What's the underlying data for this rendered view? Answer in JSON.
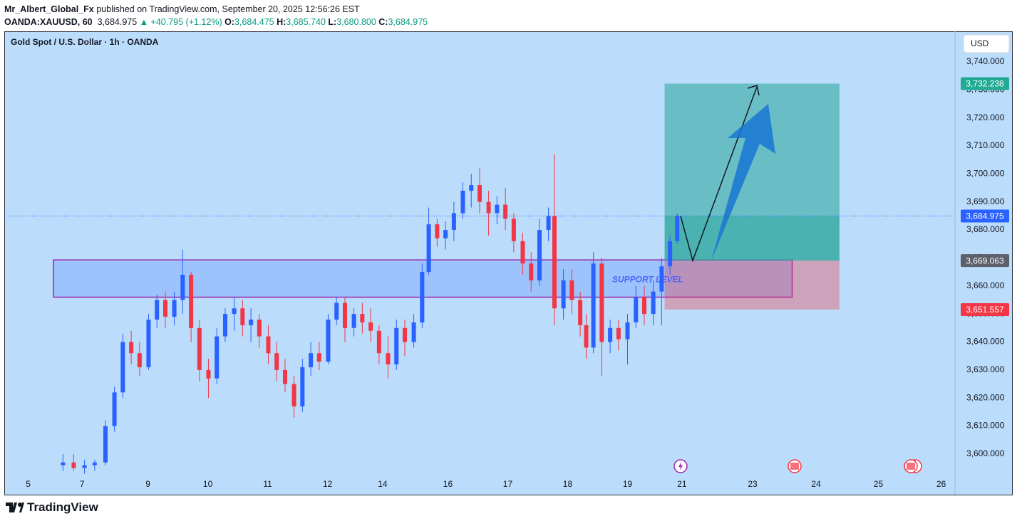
{
  "header": {
    "author": "Mr_Albert_Global_Fx",
    "published": "published on TradingView.com, September 20, 2025 12:56:26 EST",
    "symbol": "OANDA:XAUUSD, 60",
    "last": "3,684.975",
    "change": "▲ +40.795 (+1.12%)",
    "open_label": "O:",
    "open": "3,684.475",
    "high_label": "H:",
    "high": "3,685.740",
    "low_label": "L:",
    "low": "3,680.800",
    "close_label": "C:",
    "close": "3,684.975"
  },
  "currency": "USD",
  "footer": {
    "brand": "TradingView"
  },
  "chart_data": {
    "type": "candlestick",
    "title": "Gold Spot / U.S. Dollar · 1h · OANDA",
    "up_color": "#2962ff",
    "down_color": "#f23645",
    "x": [
      -0.32,
      -0.14,
      0.04,
      0.21,
      0.39,
      0.54,
      0.68,
      0.82,
      0.96,
      1.11,
      1.25,
      1.39,
      1.54,
      1.68,
      1.82,
      1.96,
      2.11,
      2.25,
      2.39,
      2.54,
      2.68,
      2.82,
      2.96,
      3.11,
      3.25,
      3.39,
      3.54,
      3.68,
      3.82,
      3.96,
      4.11,
      4.25,
      4.39,
      4.54,
      4.68,
      4.82,
      4.96,
      5.11,
      5.25,
      5.39,
      5.54,
      5.68,
      5.79,
      5.93,
      6.07,
      6.21,
      6.36,
      6.5,
      6.64,
      6.79,
      6.93,
      7.07,
      7.21,
      7.36,
      7.5,
      7.64,
      7.79,
      7.89,
      8.04,
      8.18,
      8.32,
      8.42,
      8.54,
      8.68,
      8.82,
      8.96,
      9.11,
      9.25,
      9.39,
      9.54,
      9.68,
      9.82,
      9.94
    ],
    "open": [
      3596,
      3597,
      3595,
      3596,
      3597,
      3610,
      3622,
      3640,
      3636,
      3631,
      3648,
      3655,
      3649,
      3655,
      3664,
      3645,
      3630,
      3627,
      3642,
      3650,
      3652,
      3646,
      3648,
      3642,
      3636,
      3630,
      3625,
      3617,
      3631,
      3636,
      3633,
      3648,
      3654,
      3645,
      3650,
      3647,
      3644,
      3636,
      3632,
      3645,
      3640,
      3647,
      3665,
      3682,
      3677,
      3680,
      3686,
      3694,
      3696,
      3690,
      3686,
      3689,
      3684,
      3676,
      3668,
      3662,
      3680,
      3685,
      3652,
      3662,
      3655,
      3646,
      3638,
      3668,
      3640,
      3645,
      3641,
      3647,
      3656,
      3650,
      3658,
      3667,
      3676
    ],
    "high": [
      3600,
      3600,
      3598,
      3598,
      3612,
      3624,
      3643,
      3644,
      3640,
      3650,
      3657,
      3658,
      3658,
      3673,
      3665,
      3648,
      3634,
      3645,
      3652,
      3656,
      3655,
      3652,
      3650,
      3646,
      3640,
      3634,
      3628,
      3634,
      3640,
      3640,
      3650,
      3656,
      3656,
      3652,
      3654,
      3652,
      3646,
      3642,
      3648,
      3648,
      3650,
      3668,
      3688,
      3684,
      3683,
      3690,
      3697,
      3700,
      3702,
      3694,
      3692,
      3695,
      3686,
      3679,
      3672,
      3684,
      3688,
      3707,
      3666,
      3666,
      3658,
      3650,
      3672,
      3670,
      3648,
      3648,
      3650,
      3660,
      3660,
      3662,
      3670,
      3678,
      3686
    ],
    "low": [
      3594,
      3594,
      3593,
      3594,
      3596,
      3608,
      3620,
      3632,
      3628,
      3630,
      3645,
      3645,
      3646,
      3650,
      3640,
      3626,
      3620,
      3625,
      3640,
      3644,
      3642,
      3640,
      3638,
      3632,
      3626,
      3622,
      3613,
      3615,
      3628,
      3630,
      3632,
      3646,
      3640,
      3642,
      3643,
      3640,
      3632,
      3627,
      3630,
      3635,
      3638,
      3645,
      3664,
      3674,
      3673,
      3676,
      3684,
      3688,
      3686,
      3678,
      3682,
      3680,
      3672,
      3664,
      3658,
      3660,
      3676,
      3646,
      3648,
      3650,
      3642,
      3634,
      3636,
      3628,
      3636,
      3637,
      3632,
      3645,
      3646,
      3646,
      3646,
      3664,
      3675
    ],
    "close": [
      3597,
      3595,
      3596,
      3597,
      3610,
      3622,
      3640,
      3636,
      3631,
      3648,
      3655,
      3649,
      3655,
      3664,
      3645,
      3630,
      3627,
      3642,
      3650,
      3652,
      3646,
      3648,
      3642,
      3636,
      3630,
      3625,
      3617,
      3631,
      3636,
      3633,
      3648,
      3654,
      3645,
      3650,
      3647,
      3644,
      3636,
      3632,
      3645,
      3640,
      3647,
      3665,
      3682,
      3677,
      3680,
      3686,
      3694,
      3696,
      3690,
      3686,
      3689,
      3684,
      3676,
      3668,
      3662,
      3680,
      3685,
      3652,
      3662,
      3655,
      3646,
      3638,
      3668,
      3640,
      3645,
      3641,
      3647,
      3656,
      3650,
      3658,
      3667,
      3676,
      3685
    ],
    "xlim": [
      -1.3,
      14.58
    ],
    "xticks": [
      {
        "value": -0.9,
        "label": "5"
      },
      {
        "value": 0,
        "label": "7"
      },
      {
        "value": 1.1,
        "label": "9"
      },
      {
        "value": 2.1,
        "label": "10"
      },
      {
        "value": 3.1,
        "label": "11"
      },
      {
        "value": 4.1,
        "label": "12"
      },
      {
        "value": 5.02,
        "label": "14"
      },
      {
        "value": 6.11,
        "label": "16"
      },
      {
        "value": 7.11,
        "label": "17"
      },
      {
        "value": 8.11,
        "label": "18"
      },
      {
        "value": 9.11,
        "label": "19"
      },
      {
        "value": 10.02,
        "label": "21"
      },
      {
        "value": 11.2,
        "label": "23"
      },
      {
        "value": 12.26,
        "label": "24"
      },
      {
        "value": 13.3,
        "label": "25"
      },
      {
        "value": 14.35,
        "label": "26"
      }
    ],
    "ylim": [
      3585.5,
      3750.9
    ],
    "yticks": [
      {
        "value": 3600,
        "label": "3,600.000"
      },
      {
        "value": 3610,
        "label": "3,610.000"
      },
      {
        "value": 3620,
        "label": "3,620.000"
      },
      {
        "value": 3630,
        "label": "3,630.000"
      },
      {
        "value": 3640,
        "label": "3,640.000"
      },
      {
        "value": 3650,
        "label": "3,650.000"
      },
      {
        "value": 3660,
        "label": "3,660.000"
      },
      {
        "value": 3670,
        "label": "3,670.000"
      },
      {
        "value": 3680,
        "label": "3,680.000"
      },
      {
        "value": 3690,
        "label": "3,690.000"
      },
      {
        "value": 3700,
        "label": "3,700.000"
      },
      {
        "value": 3710,
        "label": "3,710.000"
      },
      {
        "value": 3720,
        "label": "3,720.000"
      },
      {
        "value": 3730,
        "label": "3,730.000"
      },
      {
        "value": 3740,
        "label": "3,740.000"
      }
    ],
    "last_price": {
      "value": 3684.975,
      "label": "3,684.975",
      "color": "#2962ff"
    },
    "support_zone": {
      "label": "SUPPORT LEVEL",
      "x": [
        -0.48,
        11.86
      ],
      "y": [
        3656,
        3669.3
      ]
    },
    "position": {
      "x": [
        9.73,
        12.65
      ],
      "target": {
        "value": 3732.238,
        "label": "3,732.238",
        "color": "#22ab94"
      },
      "entry": {
        "value": 3669.063,
        "label": "3,669.063",
        "color": "#5d606b"
      },
      "stop": {
        "value": 3651.557,
        "label": "3,651.557",
        "color": "#f23645"
      }
    }
  }
}
